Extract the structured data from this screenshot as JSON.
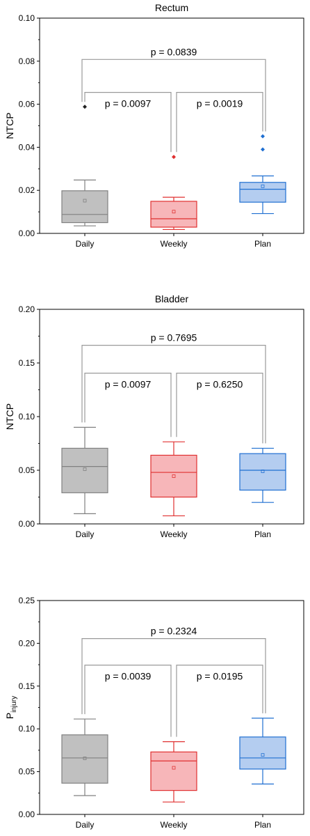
{
  "chart_data": [
    {
      "type": "box",
      "title": "Rectum",
      "ylabel": "NTCP",
      "ylabel_sub": "",
      "ylim": [
        0,
        0.1
      ],
      "yticks": [
        "0.00",
        "0.02",
        "0.04",
        "0.06",
        "0.08",
        "0.10"
      ],
      "categories": [
        "Daily",
        "Weekly",
        "Plan"
      ],
      "boxes": [
        {
          "category": "Daily",
          "color": "#808080",
          "fill": "#c0c0c0",
          "whisker_low": 0.0035,
          "q1": 0.005,
          "median": 0.0088,
          "q3": 0.0198,
          "whisker_high": 0.0248,
          "mean": 0.0152,
          "outliers": [
            0.0588
          ]
        },
        {
          "category": "Weekly",
          "color": "#e03030",
          "fill": "#f7b6b9",
          "whisker_low": 0.0018,
          "q1": 0.0029,
          "median": 0.0068,
          "q3": 0.0149,
          "whisker_high": 0.0168,
          "mean": 0.0101,
          "outliers": [
            0.0355
          ]
        },
        {
          "category": "Plan",
          "color": "#1f6fd1",
          "fill": "#b4cdf0",
          "whisker_low": 0.0092,
          "q1": 0.0145,
          "median": 0.0205,
          "q3": 0.0237,
          "whisker_high": 0.0267,
          "mean": 0.0219,
          "outliers": [
            0.039,
            0.0451
          ]
        }
      ],
      "comparisons": [
        {
          "from": "Daily",
          "to": "Weekly",
          "label": "p = 0.0097",
          "level": 0.0655
        },
        {
          "from": "Weekly",
          "to": "Plan",
          "label": "p = 0.0019",
          "level": 0.0655
        },
        {
          "from": "Daily",
          "to": "Plan",
          "label": "p = 0.0839",
          "level": 0.0808
        }
      ]
    },
    {
      "type": "box",
      "title": "Bladder",
      "ylabel": "NTCP",
      "ylabel_sub": "",
      "ylim": [
        0,
        0.2
      ],
      "yticks": [
        "0.00",
        "0.05",
        "0.10",
        "0.15",
        "0.20"
      ],
      "categories": [
        "Daily",
        "Weekly",
        "Plan"
      ],
      "boxes": [
        {
          "category": "Daily",
          "color": "#808080",
          "fill": "#c0c0c0",
          "whisker_low": 0.0095,
          "q1": 0.029,
          "median": 0.0535,
          "q3": 0.0705,
          "whisker_high": 0.09,
          "mean": 0.051,
          "outliers": []
        },
        {
          "category": "Weekly",
          "color": "#e03030",
          "fill": "#f7b6b9",
          "whisker_low": 0.0075,
          "q1": 0.025,
          "median": 0.048,
          "q3": 0.064,
          "whisker_high": 0.0765,
          "mean": 0.0445,
          "outliers": []
        },
        {
          "category": "Plan",
          "color": "#1f6fd1",
          "fill": "#b4cdf0",
          "whisker_low": 0.02,
          "q1": 0.0315,
          "median": 0.05,
          "q3": 0.0655,
          "whisker_high": 0.0705,
          "mean": 0.049,
          "outliers": []
        }
      ],
      "comparisons": [
        {
          "from": "Daily",
          "to": "Weekly",
          "label": "p = 0.0097",
          "level": 0.1405
        },
        {
          "from": "Weekly",
          "to": "Plan",
          "label": "p = 0.6250",
          "level": 0.1405
        },
        {
          "from": "Daily",
          "to": "Plan",
          "label": "p = 0.7695",
          "level": 0.1665
        }
      ]
    },
    {
      "type": "box",
      "title": "",
      "ylabel": "P",
      "ylabel_sub": "injury",
      "ylim": [
        0,
        0.25
      ],
      "yticks": [
        "0.00",
        "0.05",
        "0.10",
        "0.15",
        "0.20",
        "0.25"
      ],
      "categories": [
        "Daily",
        "Weekly",
        "Plan"
      ],
      "boxes": [
        {
          "category": "Daily",
          "color": "#808080",
          "fill": "#c0c0c0",
          "whisker_low": 0.022,
          "q1": 0.0365,
          "median": 0.066,
          "q3": 0.093,
          "whisker_high": 0.1115,
          "mean": 0.0655,
          "outliers": []
        },
        {
          "category": "Weekly",
          "color": "#e03030",
          "fill": "#f7b6b9",
          "whisker_low": 0.0145,
          "q1": 0.028,
          "median": 0.0625,
          "q3": 0.073,
          "whisker_high": 0.085,
          "mean": 0.0545,
          "outliers": []
        },
        {
          "category": "Plan",
          "color": "#1f6fd1",
          "fill": "#b4cdf0",
          "whisker_low": 0.0355,
          "q1": 0.053,
          "median": 0.066,
          "q3": 0.0905,
          "whisker_high": 0.1125,
          "mean": 0.0695,
          "outliers": []
        }
      ],
      "comparisons": [
        {
          "from": "Daily",
          "to": "Weekly",
          "label": "p = 0.0039",
          "level": 0.1745
        },
        {
          "from": "Weekly",
          "to": "Plan",
          "label": "p = 0.0195",
          "level": 0.1745
        },
        {
          "from": "Daily",
          "to": "Plan",
          "label": "p = 0.2324",
          "level": 0.2055
        }
      ]
    }
  ]
}
